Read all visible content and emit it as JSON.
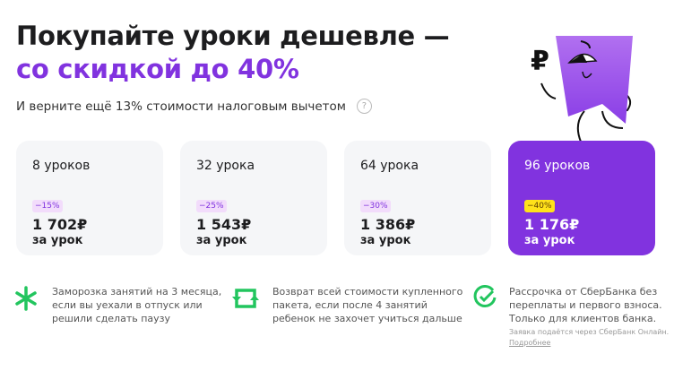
{
  "header": {
    "title_line1": "Покупайте уроки дешевле —",
    "title_line2": "со скидкой до 40%",
    "subtitle": "И верните ещё 13% стоимости налоговым вычетом",
    "help": "?"
  },
  "accent": "#8133df",
  "cards": [
    {
      "title": "8 уроков",
      "discount": "−15%",
      "discount_percent": 15,
      "price": "1 702₽",
      "per": "за урок"
    },
    {
      "title": "32 урока",
      "discount": "−25%",
      "discount_percent": 25,
      "price": "1 543₽",
      "per": "за урок"
    },
    {
      "title": "64 урока",
      "discount": "−30%",
      "discount_percent": 30,
      "price": "1 386₽",
      "per": "за урок"
    },
    {
      "title": "96 уроков",
      "discount": "−40%",
      "discount_percent": 40,
      "price": "1 176₽",
      "per": "за урок",
      "highlighted": true
    }
  ],
  "features": [
    {
      "icon": "asterisk-icon",
      "text": [
        "Заморозка занятий на 3 месяца,",
        "если вы уехали в отпуск или",
        "решили сделать паузу"
      ]
    },
    {
      "icon": "refresh-icon",
      "text": [
        "Возврат всей стоимости купленного",
        "пакета, если после 4 занятий",
        "ребенок не захочет учиться дальше"
      ]
    },
    {
      "icon": "check-circle-icon",
      "text": [
        "Рассрочка от СберБанка без",
        "переплаты и первого взноса.",
        "Только для клиентов банка."
      ],
      "note": "Заявка подаётся через СберБанк Онлайн.",
      "link": "Подробнее"
    }
  ]
}
